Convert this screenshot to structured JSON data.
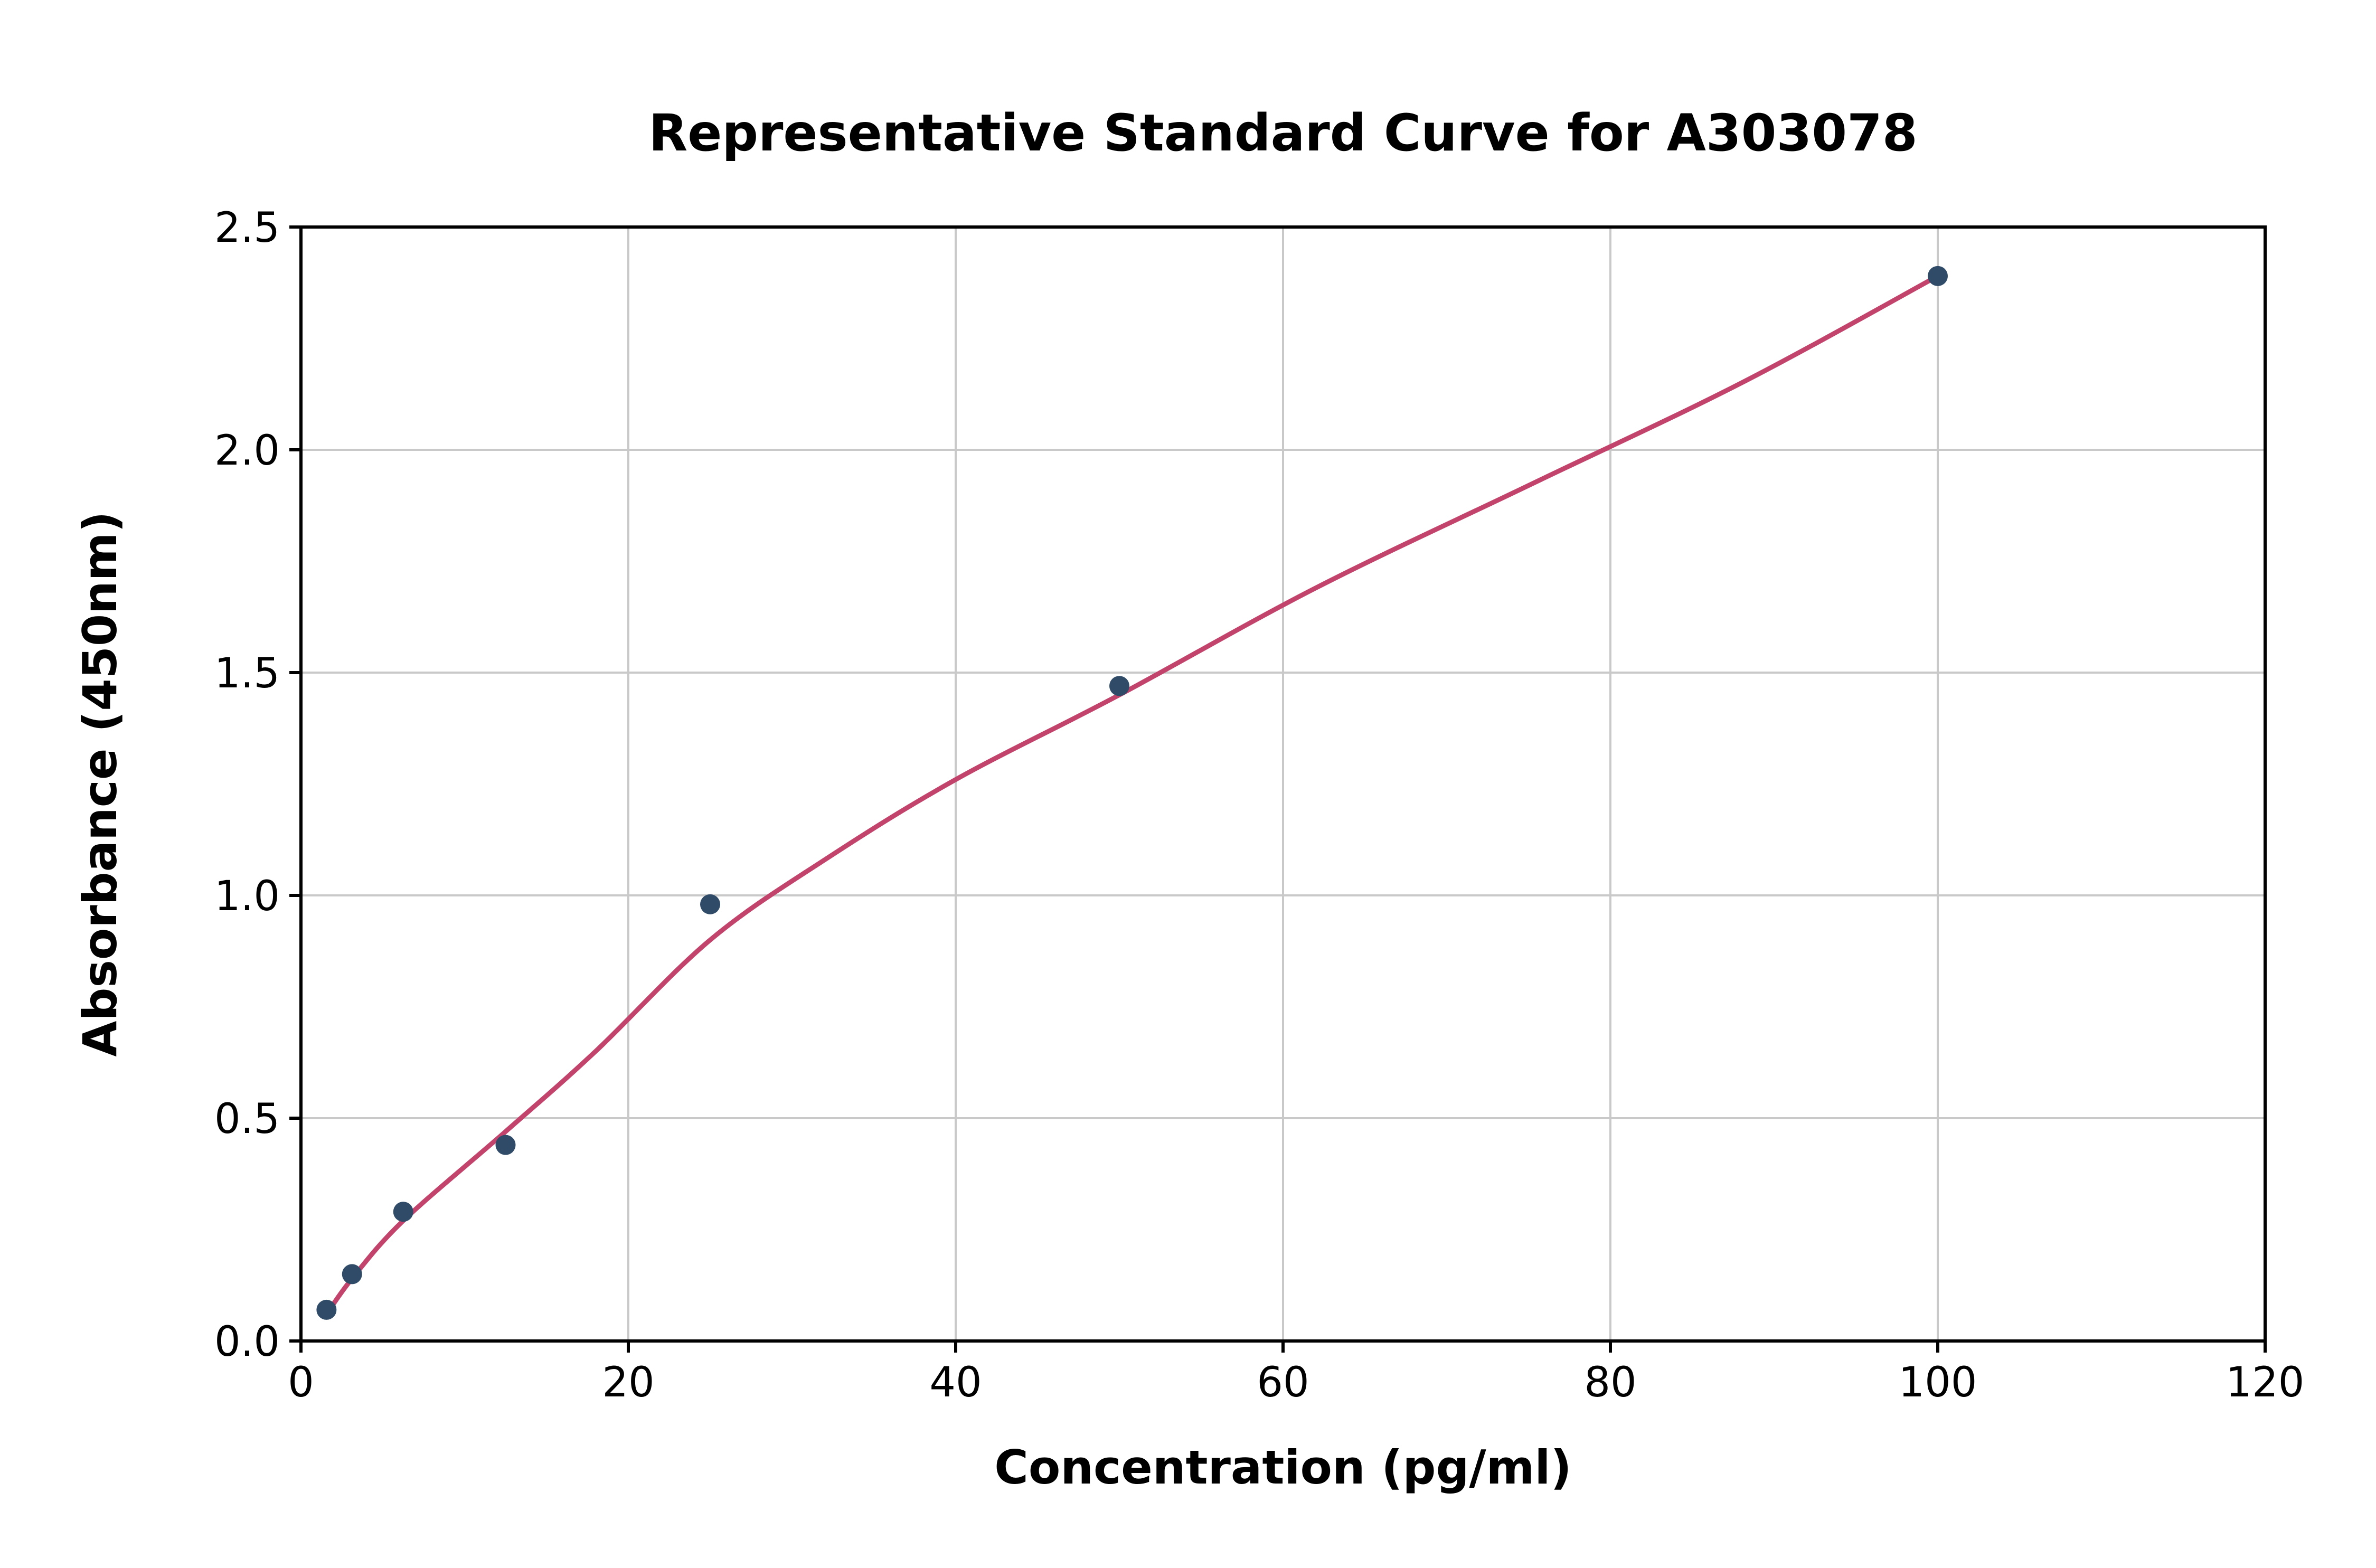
{
  "chart_data": {
    "type": "scatter",
    "title": "Representative Standard Curve for A303078",
    "xlabel": "Concentration (pg/ml)",
    "ylabel": "Absorbance (450nm)",
    "xlim": [
      0,
      120
    ],
    "ylim": [
      0,
      2.5
    ],
    "x_ticks": [
      0,
      20,
      40,
      60,
      80,
      100,
      120
    ],
    "x_tick_labels": [
      "0",
      "20",
      "40",
      "60",
      "80",
      "100",
      "120"
    ],
    "y_ticks": [
      0,
      0.5,
      1.0,
      1.5,
      2.0,
      2.5
    ],
    "y_tick_labels": [
      "0.0",
      "0.5",
      "1.0",
      "1.5",
      "2.0",
      "2.5"
    ],
    "grid": true,
    "legend": "none",
    "series": [
      {
        "name": "standard-points",
        "type": "scatter",
        "x": [
          1.56,
          3.12,
          6.25,
          12.5,
          25,
          50,
          100
        ],
        "y": [
          0.07,
          0.15,
          0.29,
          0.44,
          0.98,
          1.47,
          2.39
        ]
      },
      {
        "name": "fitted-curve",
        "type": "line",
        "x": [
          1.56,
          3.12,
          6.25,
          12.5,
          18,
          25,
          32,
          40,
          50,
          62,
          75,
          88,
          100
        ],
        "y": [
          0.06,
          0.14,
          0.27,
          0.47,
          0.65,
          0.9,
          1.08,
          1.26,
          1.45,
          1.69,
          1.92,
          2.15,
          2.39
        ]
      }
    ],
    "colors": {
      "point": "#2f4b68",
      "curve": "#c2446c",
      "grid": "#c9c9c9",
      "axis": "#000000",
      "background": "#ffffff"
    }
  }
}
